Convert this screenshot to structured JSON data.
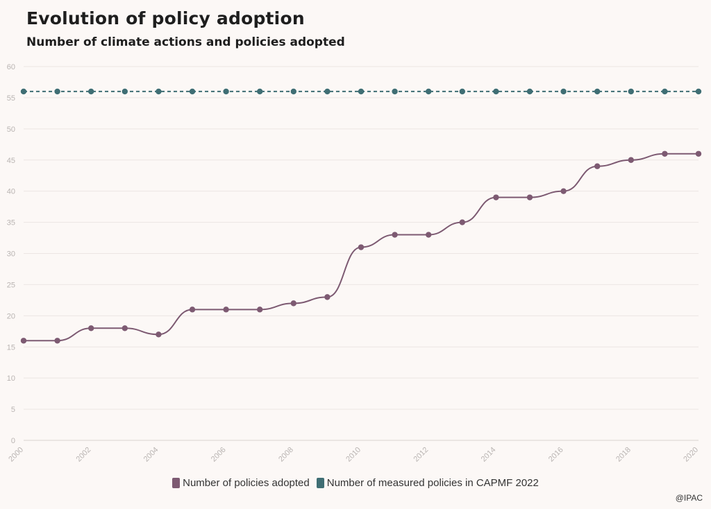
{
  "title": "Evolution of policy adoption",
  "subtitle": "Number of climate actions and policies adopted",
  "credit": "@IPAC",
  "colors": {
    "background": "#fcf8f6",
    "adopted": "#7d5a72",
    "measured": "#3f6e74",
    "grid": "#ece6e3",
    "tick": "#b9b4b2"
  },
  "chart_data": {
    "type": "line",
    "title": "Evolution of policy adoption",
    "subtitle": "Number of climate actions and policies adopted",
    "x": [
      2000,
      2001,
      2002,
      2003,
      2004,
      2005,
      2006,
      2007,
      2008,
      2009,
      2010,
      2011,
      2012,
      2013,
      2014,
      2015,
      2016,
      2017,
      2018,
      2019,
      2020
    ],
    "x_tick_labels": [
      "2000",
      "2002",
      "2004",
      "2006",
      "2008",
      "2010",
      "2012",
      "2014",
      "2016",
      "2018",
      "2020"
    ],
    "y_tick_labels": [
      "0",
      "5",
      "10",
      "15",
      "20",
      "25",
      "30",
      "35",
      "40",
      "45",
      "50",
      "55",
      "60"
    ],
    "ylim": [
      0,
      60
    ],
    "xlim": [
      2000,
      2020
    ],
    "grid": true,
    "legend_position": "bottom",
    "series": [
      {
        "name": "Number of policies adopted",
        "color": "#7d5a72",
        "style": "smooth",
        "values": [
          16,
          16,
          18,
          18,
          17,
          21,
          21,
          21,
          22,
          23,
          31,
          33,
          33,
          35,
          39,
          39,
          40,
          44,
          45,
          46,
          46
        ]
      },
      {
        "name": "Number of measured policies in CAPMF 2022",
        "color": "#3f6e74",
        "style": "dashed",
        "values": [
          56,
          56,
          56,
          56,
          56,
          56,
          56,
          56,
          56,
          56,
          56,
          56,
          56,
          56,
          56,
          56,
          56,
          56,
          56,
          56,
          56
        ]
      }
    ]
  }
}
